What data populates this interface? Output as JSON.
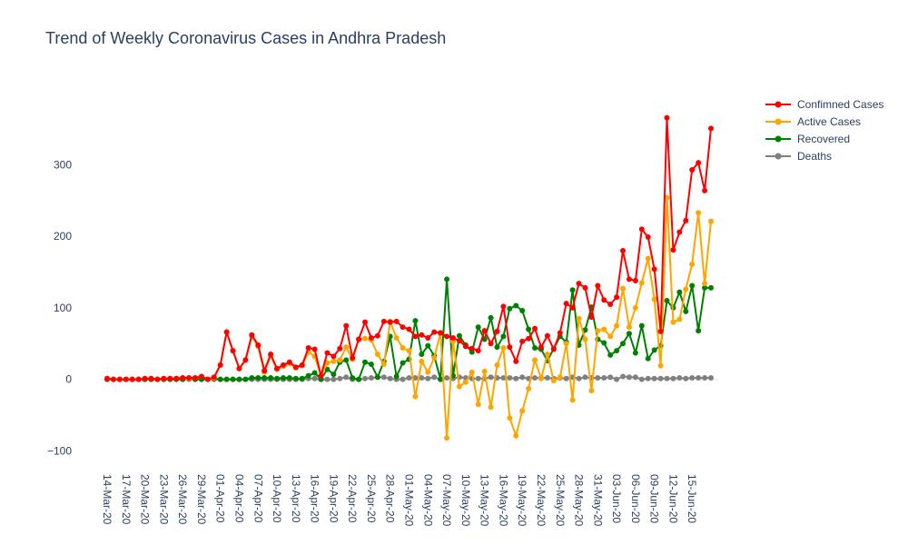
{
  "chart_data": {
    "type": "line",
    "title": "Trend of Weekly Coronavirus Cases in Andhra Pradesh",
    "xlabel": "",
    "ylabel": "",
    "ylim": [
      -120,
      410
    ],
    "yticks": [
      -100,
      0,
      100,
      200,
      300
    ],
    "ytick_labels": [
      "−100",
      "0",
      "100",
      "200",
      "300"
    ],
    "x": [
      "14-Mar-20",
      "15-Mar-20",
      "16-Mar-20",
      "17-Mar-20",
      "18-Mar-20",
      "19-Mar-20",
      "20-Mar-20",
      "21-Mar-20",
      "22-Mar-20",
      "23-Mar-20",
      "24-Mar-20",
      "25-Mar-20",
      "26-Mar-20",
      "27-Mar-20",
      "28-Mar-20",
      "29-Mar-20",
      "30-Mar-20",
      "31-Mar-20",
      "01-Apr-20",
      "02-Apr-20",
      "03-Apr-20",
      "04-Apr-20",
      "05-Apr-20",
      "06-Apr-20",
      "07-Apr-20",
      "08-Apr-20",
      "09-Apr-20",
      "10-Apr-20",
      "11-Apr-20",
      "12-Apr-20",
      "13-Apr-20",
      "14-Apr-20",
      "15-Apr-20",
      "16-Apr-20",
      "17-Apr-20",
      "18-Apr-20",
      "19-Apr-20",
      "20-Apr-20",
      "21-Apr-20",
      "22-Apr-20",
      "23-Apr-20",
      "24-Apr-20",
      "25-Apr-20",
      "26-Apr-20",
      "27-Apr-20",
      "28-Apr-20",
      "29-Apr-20",
      "30-Apr-20",
      "01-May-20",
      "02-May-20",
      "03-May-20",
      "04-May-20",
      "05-May-20",
      "06-May-20",
      "07-May-20",
      "08-May-20",
      "09-May-20",
      "10-May-20",
      "11-May-20",
      "12-May-20",
      "13-May-20",
      "14-May-20",
      "15-May-20",
      "16-May-20",
      "17-May-20",
      "18-May-20",
      "19-May-20",
      "20-May-20",
      "21-May-20",
      "22-May-20",
      "23-May-20",
      "24-May-20",
      "25-May-20",
      "26-May-20",
      "27-May-20",
      "28-May-20",
      "29-May-20",
      "30-May-20",
      "31-May-20",
      "01-Jun-20",
      "02-Jun-20",
      "03-Jun-20",
      "04-Jun-20",
      "05-Jun-20",
      "06-Jun-20",
      "07-Jun-20",
      "08-Jun-20",
      "09-Jun-20",
      "10-Jun-20",
      "11-Jun-20",
      "12-Jun-20",
      "13-Jun-20",
      "14-Jun-20",
      "15-Jun-20",
      "16-Jun-20",
      "17-Jun-20",
      "18-Jun-20"
    ],
    "xtick_labels": [
      "14-Mar-20",
      "17-Mar-20",
      "20-Mar-20",
      "23-Mar-20",
      "26-Mar-20",
      "29-Mar-20",
      "01-Apr-20",
      "04-Apr-20",
      "07-Apr-20",
      "10-Apr-20",
      "13-Apr-20",
      "16-Apr-20",
      "19-Apr-20",
      "22-Apr-20",
      "25-Apr-20",
      "28-Apr-20",
      "01-May-20",
      "04-May-20",
      "07-May-20",
      "10-May-20",
      "13-May-20",
      "16-May-20",
      "19-May-20",
      "22-May-20",
      "25-May-20",
      "28-May-20",
      "31-May-20",
      "03-Jun-20",
      "06-Jun-20",
      "09-Jun-20",
      "12-Jun-20",
      "15-Jun-20"
    ],
    "legend_position": "top-right",
    "grid": false,
    "series": [
      {
        "name": "Confimned Cases",
        "color": "#ff0000",
        "values": [
          1,
          0,
          0,
          0,
          0,
          0,
          1,
          1,
          0,
          1,
          1,
          1,
          2,
          2,
          2,
          4,
          0,
          3,
          20,
          66,
          40,
          15,
          27,
          62,
          48,
          12,
          35,
          15,
          20,
          24,
          17,
          20,
          44,
          42,
          5,
          37,
          32,
          43,
          75,
          30,
          56,
          80,
          58,
          61,
          81,
          80,
          81,
          73,
          70,
          60,
          62,
          58,
          66,
          65,
          60,
          58,
          54,
          46,
          43,
          40,
          68,
          50,
          67,
          102,
          45,
          25,
          53,
          57,
          71,
          45,
          61,
          42,
          65,
          106,
          100,
          134,
          128,
          87,
          131,
          111,
          105,
          115,
          180,
          140,
          138,
          210,
          199,
          154,
          67,
          366,
          181,
          206,
          222,
          293,
          303,
          264,
          351
        ]
      },
      {
        "name": "Active Cases",
        "color": "#ffa500",
        "values": [
          1,
          0,
          0,
          0,
          0,
          0,
          1,
          1,
          0,
          1,
          1,
          1,
          2,
          1,
          2,
          4,
          0,
          2,
          20,
          66,
          40,
          15,
          27,
          60,
          46,
          10,
          33,
          14,
          18,
          22,
          16,
          19,
          38,
          32,
          5,
          23,
          25,
          27,
          45,
          28,
          56,
          57,
          55,
          35,
          21,
          81,
          58,
          44,
          40,
          -24,
          25,
          10,
          30,
          65,
          -82,
          53,
          -10,
          -4,
          10,
          -35,
          11,
          -39,
          20,
          44,
          -54,
          -79,
          -44,
          -13,
          27,
          1,
          35,
          -2,
          3,
          50,
          -29,
          85,
          56,
          -16,
          68,
          70,
          60,
          75,
          127,
          73,
          100,
          135,
          169,
          112,
          19,
          254,
          80,
          84,
          126,
          161,
          233,
          134,
          221
        ]
      },
      {
        "name": "Recovered",
        "color": "#008000",
        "values": [
          0,
          0,
          0,
          0,
          0,
          0,
          0,
          0,
          0,
          0,
          0,
          0,
          0,
          1,
          0,
          0,
          0,
          1,
          0,
          0,
          0,
          0,
          0,
          2,
          2,
          2,
          2,
          1,
          2,
          2,
          1,
          1,
          5,
          9,
          0,
          14,
          7,
          24,
          27,
          2,
          0,
          24,
          21,
          3,
          25,
          60,
          4,
          23,
          28,
          82,
          35,
          47,
          33,
          0,
          140,
          5,
          61,
          48,
          38,
          73,
          56,
          86,
          45,
          60,
          99,
          103,
          96,
          70,
          44,
          42,
          26,
          43,
          60,
          52,
          125,
          48,
          69,
          101,
          56,
          51,
          34,
          40,
          50,
          64,
          37,
          75,
          29,
          41,
          47,
          110,
          100,
          122,
          95,
          131,
          68,
          128,
          128
        ]
      },
      {
        "name": "Deaths",
        "color": "#808080",
        "values": [
          0,
          0,
          0,
          0,
          0,
          0,
          0,
          0,
          0,
          0,
          0,
          0,
          0,
          0,
          0,
          0,
          0,
          0,
          0,
          0,
          0,
          0,
          0,
          0,
          0,
          0,
          0,
          0,
          0,
          0,
          0,
          0,
          1,
          1,
          0,
          0,
          0,
          1,
          3,
          0,
          0,
          1,
          2,
          3,
          3,
          1,
          0,
          0,
          2,
          2,
          2,
          1,
          3,
          0,
          2,
          1,
          3,
          2,
          1,
          1,
          1,
          3,
          2,
          2,
          2,
          1,
          3,
          1,
          2,
          2,
          2,
          1,
          2,
          1,
          3,
          1,
          3,
          2,
          2,
          2,
          3,
          0,
          4,
          3,
          3,
          0,
          1,
          1,
          1,
          1,
          1,
          2,
          1,
          2,
          2,
          2,
          2
        ]
      }
    ]
  }
}
